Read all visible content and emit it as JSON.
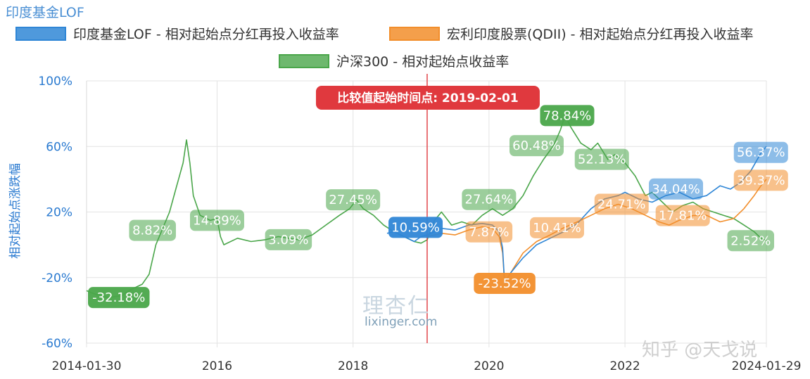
{
  "header": {
    "title": "印度基金LOF",
    "watermark_logo": "理杏仁",
    "watermark_url": "lixinger.com",
    "credit": "知乎 @天戈说"
  },
  "chart_data": {
    "type": "line",
    "title": "印度基金LOF",
    "ylabel": "相对起始点涨跌幅",
    "xlabel": "",
    "ylim": [
      -60,
      100
    ],
    "yticks": [
      "100%",
      "60%",
      "20%",
      "-20%",
      "-60%"
    ],
    "ytick_values": [
      100,
      60,
      20,
      -20,
      -60
    ],
    "xticks": [
      "2014-01-30",
      "2016",
      "2018",
      "2020",
      "2022",
      "2024-01-29"
    ],
    "xtick_values": [
      2014.08,
      2016.0,
      2018.0,
      2020.0,
      2022.0,
      2024.08
    ],
    "xlim": [
      2014.08,
      2024.08
    ],
    "grid": true,
    "legend_position": "top",
    "marker": {
      "label": "比较值起始时间点: 2019-02-01",
      "x": 2019.09,
      "color": "#e0393e"
    },
    "series": [
      {
        "name": "印度基金LOF - 相对起始点分红再投入收益率",
        "color": "#2f86d6",
        "points": [
          [
            2018.5,
            7
          ],
          [
            2018.6,
            8
          ],
          [
            2018.75,
            5
          ],
          [
            2018.9,
            2
          ],
          [
            2019.0,
            5
          ],
          [
            2019.09,
            6
          ],
          [
            2019.3,
            10
          ],
          [
            2019.5,
            9
          ],
          [
            2019.7,
            12
          ],
          [
            2019.9,
            13
          ],
          [
            2020.05,
            12
          ],
          [
            2020.15,
            8
          ],
          [
            2020.2,
            -2
          ],
          [
            2020.23,
            -24
          ],
          [
            2020.3,
            -18
          ],
          [
            2020.5,
            -8
          ],
          [
            2020.7,
            0
          ],
          [
            2020.9,
            4
          ],
          [
            2021.1,
            8
          ],
          [
            2021.3,
            13
          ],
          [
            2021.5,
            22
          ],
          [
            2021.7,
            28
          ],
          [
            2021.9,
            30
          ],
          [
            2022.0,
            32
          ],
          [
            2022.2,
            28
          ],
          [
            2022.4,
            26
          ],
          [
            2022.6,
            30
          ],
          [
            2022.8,
            32
          ],
          [
            2023.0,
            28
          ],
          [
            2023.2,
            30
          ],
          [
            2023.4,
            36
          ],
          [
            2023.55,
            34
          ],
          [
            2023.7,
            38
          ],
          [
            2023.85,
            45
          ],
          [
            2024.0,
            56
          ],
          [
            2024.08,
            60
          ]
        ],
        "labels": [
          {
            "text": "10.59%",
            "x": 2018.92,
            "y": 10.59
          },
          {
            "text": "34.04%",
            "x": 2022.75,
            "y": 34.04
          },
          {
            "text": "56.37%",
            "x": 2024.0,
            "y": 56.37
          }
        ]
      },
      {
        "name": "宏利印度股票(QDII)  - 相对起始点分红再投入收益率",
        "color": "#f28e2b",
        "points": [
          [
            2019.09,
            5
          ],
          [
            2019.3,
            7
          ],
          [
            2019.5,
            6
          ],
          [
            2019.7,
            9
          ],
          [
            2019.9,
            11
          ],
          [
            2020.05,
            10
          ],
          [
            2020.15,
            5
          ],
          [
            2020.2,
            -5
          ],
          [
            2020.23,
            -23.52
          ],
          [
            2020.35,
            -15
          ],
          [
            2020.5,
            -5
          ],
          [
            2020.7,
            2
          ],
          [
            2020.9,
            6
          ],
          [
            2021.1,
            10.41
          ],
          [
            2021.3,
            14
          ],
          [
            2021.5,
            18
          ],
          [
            2021.7,
            22
          ],
          [
            2021.9,
            24.71
          ],
          [
            2022.1,
            22
          ],
          [
            2022.3,
            18
          ],
          [
            2022.5,
            14
          ],
          [
            2022.65,
            12
          ],
          [
            2022.8,
            15
          ],
          [
            2023.0,
            17.81
          ],
          [
            2023.2,
            18
          ],
          [
            2023.4,
            14
          ],
          [
            2023.6,
            16
          ],
          [
            2023.75,
            22
          ],
          [
            2023.9,
            30
          ],
          [
            2024.0,
            36
          ],
          [
            2024.08,
            40
          ]
        ],
        "labels": [
          {
            "text": "7.87%",
            "x": 2020.0,
            "y": 7.87
          },
          {
            "text": "-23.52%",
            "x": 2020.23,
            "y": -23.52
          },
          {
            "text": "10.41%",
            "x": 2021.0,
            "y": 10.41
          },
          {
            "text": "24.71%",
            "x": 2021.95,
            "y": 24.71
          },
          {
            "text": "17.81%",
            "x": 2022.85,
            "y": 17.81
          },
          {
            "text": "39.37%",
            "x": 2024.0,
            "y": 39.37
          }
        ]
      },
      {
        "name": "沪深300 - 相对起始点收益率",
        "color": "#4aa64a",
        "points": [
          [
            2014.08,
            -28
          ],
          [
            2014.2,
            -30
          ],
          [
            2014.4,
            -32.18
          ],
          [
            2014.6,
            -31
          ],
          [
            2014.7,
            -28
          ],
          [
            2014.9,
            -24
          ],
          [
            2015.0,
            -18
          ],
          [
            2015.1,
            0
          ],
          [
            2015.2,
            10
          ],
          [
            2015.3,
            20
          ],
          [
            2015.4,
            35
          ],
          [
            2015.5,
            50
          ],
          [
            2015.55,
            64
          ],
          [
            2015.6,
            50
          ],
          [
            2015.65,
            30
          ],
          [
            2015.75,
            18
          ],
          [
            2015.9,
            14.89
          ],
          [
            2016.0,
            16
          ],
          [
            2016.05,
            5
          ],
          [
            2016.1,
            0
          ],
          [
            2016.3,
            4
          ],
          [
            2016.5,
            2
          ],
          [
            2016.7,
            3
          ],
          [
            2016.9,
            5
          ],
          [
            2017.2,
            3.09
          ],
          [
            2017.4,
            6
          ],
          [
            2017.6,
            12
          ],
          [
            2017.8,
            18
          ],
          [
            2017.95,
            22
          ],
          [
            2018.05,
            27.45
          ],
          [
            2018.15,
            22
          ],
          [
            2018.3,
            18
          ],
          [
            2018.45,
            12
          ],
          [
            2018.6,
            8
          ],
          [
            2018.75,
            5
          ],
          [
            2018.9,
            2
          ],
          [
            2019.0,
            1
          ],
          [
            2019.09,
            3
          ],
          [
            2019.2,
            15
          ],
          [
            2019.3,
            20
          ],
          [
            2019.45,
            12
          ],
          [
            2019.6,
            14
          ],
          [
            2019.75,
            12
          ],
          [
            2019.9,
            18
          ],
          [
            2020.05,
            22
          ],
          [
            2020.2,
            18
          ],
          [
            2020.35,
            22
          ],
          [
            2020.5,
            30
          ],
          [
            2020.65,
            42
          ],
          [
            2020.8,
            52
          ],
          [
            2020.95,
            60.48
          ],
          [
            2021.05,
            70
          ],
          [
            2021.12,
            78.84
          ],
          [
            2021.2,
            72
          ],
          [
            2021.35,
            62
          ],
          [
            2021.5,
            58
          ],
          [
            2021.6,
            62
          ],
          [
            2021.75,
            52
          ],
          [
            2021.85,
            55
          ],
          [
            2022.0,
            50
          ],
          [
            2022.15,
            42
          ],
          [
            2022.3,
            30
          ],
          [
            2022.4,
            32
          ],
          [
            2022.55,
            26
          ],
          [
            2022.7,
            20
          ],
          [
            2022.85,
            24
          ],
          [
            2023.0,
            26
          ],
          [
            2023.15,
            22
          ],
          [
            2023.3,
            20
          ],
          [
            2023.45,
            18
          ],
          [
            2023.6,
            16
          ],
          [
            2023.75,
            12
          ],
          [
            2023.9,
            8
          ],
          [
            2024.0,
            4
          ],
          [
            2024.08,
            2.52
          ]
        ],
        "labels": [
          {
            "text": "-32.18%",
            "x": 2014.55,
            "y": -32.18
          },
          {
            "text": "8.82%",
            "x": 2015.05,
            "y": 8.82
          },
          {
            "text": "14.89%",
            "x": 2016.0,
            "y": 14.89
          },
          {
            "text": "3.09%",
            "x": 2017.05,
            "y": 3.09
          },
          {
            "text": "27.45%",
            "x": 2018.0,
            "y": 27.45
          },
          {
            "text": "27.64%",
            "x": 2020.0,
            "y": 27.64
          },
          {
            "text": "60.48%",
            "x": 2020.7,
            "y": 60.48
          },
          {
            "text": "78.84%",
            "x": 2021.15,
            "y": 78.84
          },
          {
            "text": "52.13%",
            "x": 2021.66,
            "y": 52.13
          },
          {
            "text": "2.52%",
            "x": 2023.85,
            "y": 2.52
          }
        ]
      }
    ]
  }
}
